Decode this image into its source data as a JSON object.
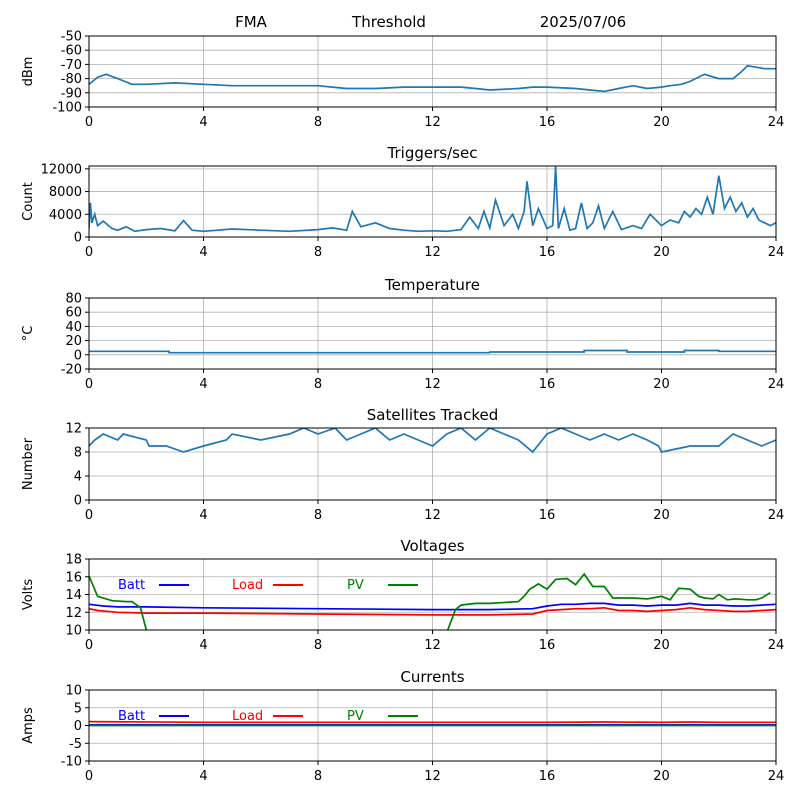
{
  "header": {
    "left": "FMA",
    "middle": "Threshold",
    "right": "2025/07/06"
  },
  "x_axis": {
    "ticks": [
      0,
      4,
      8,
      12,
      16,
      20,
      24
    ],
    "xlim": [
      0,
      24
    ]
  },
  "colors": {
    "series_default": "#1f77b4",
    "batt": "#0000ff",
    "load": "#ff0000",
    "pv": "#008000",
    "grid": "#b0b0b0"
  },
  "chart_data": [
    {
      "type": "line",
      "title": "",
      "ylabel": "dBm",
      "ylim": [
        -100,
        -50
      ],
      "yticks": [
        -100,
        -90,
        -80,
        -70,
        -60,
        -50
      ],
      "grid": true,
      "series": [
        {
          "x": [
            0,
            0.3,
            0.6,
            1,
            1.5,
            2,
            3,
            4,
            5,
            6,
            7,
            8,
            8.5,
            9,
            10,
            11,
            12,
            13,
            13.5,
            14,
            15,
            15.5,
            16,
            17,
            17.5,
            18,
            18.5,
            19,
            19.5,
            20,
            20.3,
            20.7,
            21,
            21.5,
            22,
            22.5,
            22.8,
            23,
            23.3,
            23.6,
            24
          ],
          "y": [
            -84,
            -79,
            -77,
            -80,
            -84,
            -84,
            -83,
            -84,
            -85,
            -85,
            -85,
            -85,
            -86,
            -87,
            -87,
            -86,
            -86,
            -86,
            -87,
            -88,
            -87,
            -86,
            -86,
            -87,
            -88,
            -89,
            -87,
            -85,
            -87,
            -86,
            -85,
            -84,
            -82,
            -77,
            -80,
            -80,
            -75,
            -71,
            -72,
            -73,
            -73
          ]
        }
      ]
    },
    {
      "type": "line",
      "title": "Triggers/sec",
      "ylabel": "Count",
      "ylim": [
        0,
        12500
      ],
      "yticks": [
        0,
        4000,
        8000,
        12000
      ],
      "grid": true,
      "series": [
        {
          "x": [
            0,
            0.05,
            0.1,
            0.2,
            0.3,
            0.5,
            0.8,
            1,
            1.3,
            1.6,
            2,
            2.5,
            3,
            3.3,
            3.6,
            4,
            5,
            6,
            7,
            8,
            8.5,
            9,
            9.2,
            9.5,
            10,
            10.5,
            11,
            11.5,
            12,
            12.5,
            13,
            13.3,
            13.6,
            13.8,
            14,
            14.2,
            14.5,
            14.8,
            15,
            15.2,
            15.3,
            15.5,
            15.7,
            16,
            16.2,
            16.3,
            16.4,
            16.6,
            16.8,
            17,
            17.2,
            17.4,
            17.6,
            17.8,
            18,
            18.3,
            18.6,
            19,
            19.3,
            19.6,
            20,
            20.3,
            20.6,
            20.8,
            21,
            21.2,
            21.4,
            21.6,
            21.8,
            22,
            22.2,
            22.4,
            22.6,
            22.8,
            23,
            23.2,
            23.4,
            23.6,
            23.8,
            24
          ],
          "y": [
            1500,
            6000,
            2500,
            4000,
            2000,
            2800,
            1500,
            1200,
            1800,
            1000,
            1300,
            1500,
            1100,
            2900,
            1200,
            1000,
            1400,
            1200,
            1000,
            1300,
            1600,
            1200,
            4500,
            1800,
            2500,
            1500,
            1200,
            1000,
            1100,
            1000,
            1300,
            3500,
            1500,
            4500,
            1600,
            6500,
            2000,
            4000,
            1500,
            4500,
            9800,
            2000,
            5000,
            1500,
            2000,
            12500,
            1500,
            5000,
            1200,
            1500,
            6000,
            1500,
            2500,
            5500,
            1500,
            4500,
            1300,
            2000,
            1500,
            4000,
            2000,
            3000,
            2500,
            4500,
            3500,
            5000,
            4000,
            7000,
            4000,
            10800,
            5000,
            7000,
            4500,
            6000,
            3500,
            5000,
            3000,
            2500,
            2000,
            2500
          ]
        }
      ]
    },
    {
      "type": "line",
      "title": "Temperature",
      "ylabel": "°C",
      "ylim": [
        -20,
        80
      ],
      "yticks": [
        -20,
        0,
        20,
        40,
        60,
        80
      ],
      "grid": true,
      "series": [
        {
          "x": [
            0,
            2.8,
            2.8,
            14,
            14,
            17.3,
            17.3,
            18.8,
            18.8,
            20.8,
            20.8,
            22,
            22,
            24
          ],
          "y": [
            5,
            5,
            3,
            3,
            4,
            4,
            6,
            6,
            4,
            4,
            6,
            6,
            5,
            5
          ]
        }
      ]
    },
    {
      "type": "line",
      "title": "Satellites Tracked",
      "ylabel": "Number",
      "ylim": [
        0,
        12
      ],
      "yticks": [
        0,
        4,
        8,
        12
      ],
      "grid": true,
      "series": [
        {
          "x": [
            0,
            0.2,
            0.5,
            1,
            1.2,
            2,
            2.1,
            2.7,
            3.3,
            4,
            4.8,
            5,
            6,
            7,
            7.5,
            8,
            8.6,
            9,
            9.5,
            10,
            10.5,
            11,
            11.5,
            12,
            12.5,
            13,
            13.5,
            14,
            14.5,
            15,
            15.5,
            16,
            16.5,
            17,
            17.5,
            18,
            18.5,
            19,
            19.5,
            19.9,
            20,
            21,
            22,
            22.5,
            23,
            23.5,
            24
          ],
          "y": [
            9,
            10,
            11,
            10,
            11,
            10,
            9,
            9,
            8,
            9,
            10,
            11,
            10,
            11,
            12,
            11,
            12,
            10,
            11,
            12,
            10,
            11,
            10,
            9,
            11,
            12,
            10,
            12,
            11,
            10,
            8,
            11,
            12,
            11,
            10,
            11,
            10,
            11,
            10,
            9,
            8,
            9,
            9,
            11,
            10,
            9,
            10
          ]
        }
      ]
    },
    {
      "type": "line",
      "title": "Voltages",
      "ylabel": "Volts",
      "ylim": [
        10,
        18
      ],
      "yticks": [
        10,
        12,
        14,
        16,
        18
      ],
      "grid": true,
      "legend": {
        "placement": "top-left",
        "entries": [
          "Batt",
          "Load",
          "PV"
        ]
      },
      "series": [
        {
          "name": "Batt",
          "color_key": "batt",
          "x": [
            0,
            0.5,
            1,
            2,
            4,
            8,
            12,
            14,
            15.5,
            16,
            16.5,
            17,
            17.5,
            18,
            18.5,
            19,
            19.5,
            20,
            20.5,
            21,
            21.5,
            22,
            22.5,
            23,
            23.5,
            24
          ],
          "y": [
            12.9,
            12.7,
            12.6,
            12.6,
            12.5,
            12.4,
            12.3,
            12.3,
            12.4,
            12.7,
            12.9,
            12.9,
            13.0,
            13.0,
            12.8,
            12.8,
            12.7,
            12.8,
            12.8,
            13.0,
            12.8,
            12.8,
            12.7,
            12.7,
            12.8,
            12.9
          ]
        },
        {
          "name": "Load",
          "color_key": "load",
          "x": [
            0,
            0.3,
            1,
            2,
            4,
            8,
            12,
            14,
            15.5,
            16,
            16.5,
            17,
            17.5,
            18,
            18.5,
            19,
            19.5,
            20,
            20.5,
            21,
            21.5,
            22,
            22.5,
            23,
            23.5,
            24
          ],
          "y": [
            12.4,
            12.2,
            12.0,
            11.9,
            11.9,
            11.8,
            11.7,
            11.7,
            11.8,
            12.2,
            12.3,
            12.4,
            12.4,
            12.5,
            12.2,
            12.2,
            12.1,
            12.2,
            12.3,
            12.5,
            12.3,
            12.2,
            12.1,
            12.1,
            12.2,
            12.3
          ]
        },
        {
          "name": "PV",
          "color_key": "pv",
          "x": [
            0,
            0.3,
            0.8,
            1.3,
            1.5,
            1.8,
            2.0,
            2.3,
            12.3,
            12.8,
            13,
            13.5,
            14,
            15,
            15.2,
            15.4,
            15.7,
            16,
            16.3,
            16.7,
            17,
            17.3,
            17.6,
            18,
            18.3,
            18.6,
            19,
            19.5,
            20,
            20.3,
            20.6,
            21,
            21.3,
            21.5,
            21.8,
            22,
            22.3,
            22.6,
            23,
            23.3,
            23.5,
            23.8
          ],
          "y": [
            16.1,
            13.8,
            13.3,
            13.2,
            13.2,
            12.5,
            10.0,
            8.0,
            8.0,
            12.3,
            12.8,
            13.0,
            13.0,
            13.2,
            13.8,
            14.6,
            15.2,
            14.6,
            15.7,
            15.8,
            15.1,
            16.3,
            14.9,
            14.9,
            13.6,
            13.6,
            13.6,
            13.5,
            13.8,
            13.4,
            14.7,
            14.6,
            13.8,
            13.6,
            13.5,
            14.0,
            13.4,
            13.5,
            13.4,
            13.4,
            13.6,
            14.2
          ]
        }
      ]
    },
    {
      "type": "line",
      "title": "Currents",
      "ylabel": "Amps",
      "ylim": [
        -10,
        10
      ],
      "yticks": [
        -10,
        -5,
        0,
        5,
        10
      ],
      "grid": true,
      "legend": {
        "placement": "top-left",
        "entries": [
          "Batt",
          "Load",
          "PV"
        ]
      },
      "series": [
        {
          "name": "Batt",
          "color_key": "batt",
          "x": [
            0,
            24
          ],
          "y": [
            0.2,
            0.2
          ]
        },
        {
          "name": "Load",
          "color_key": "load",
          "x": [
            0,
            4,
            8,
            12,
            16,
            18,
            20,
            21,
            22,
            24
          ],
          "y": [
            1.1,
            0.9,
            0.9,
            0.9,
            0.9,
            1.0,
            0.9,
            1.0,
            0.9,
            0.9
          ]
        },
        {
          "name": "PV",
          "color_key": "pv",
          "x": [
            0,
            24
          ],
          "y": [
            0.0,
            0.0
          ]
        }
      ]
    }
  ]
}
